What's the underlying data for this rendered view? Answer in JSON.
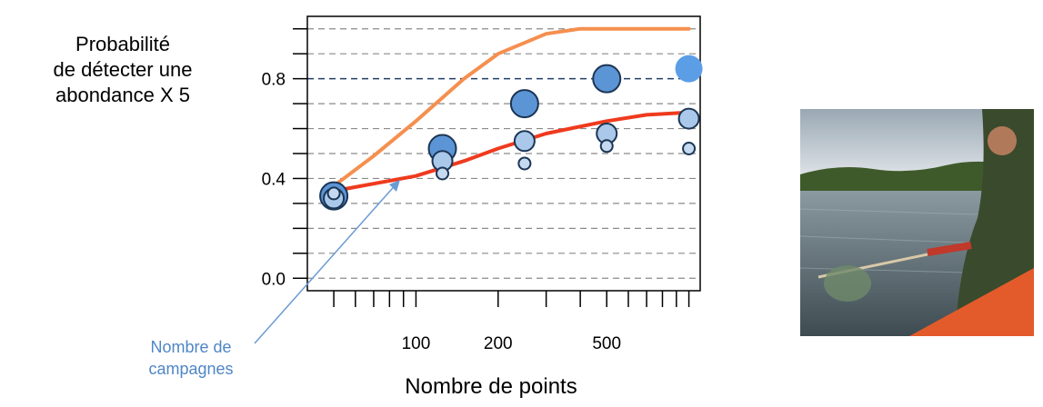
{
  "chart_data": {
    "type": "scatter",
    "title": "",
    "ylabel_lines": [
      "Probabilité",
      "de détecter une",
      "abondance X 5"
    ],
    "xlabel": "Nombre de points",
    "x_scale": "log",
    "xlim": [
      40,
      1100
    ],
    "ylim": [
      -0.05,
      1.05
    ],
    "x_ticks": [
      100,
      200,
      500
    ],
    "y_ticks": [
      0.0,
      0.4,
      0.8
    ],
    "y_tick_labels": [
      "0.0",
      "0.4",
      "0.8"
    ],
    "grid": "horizontal dashed every 0.1",
    "reference_line": {
      "y": 0.8,
      "color": "#1f3d66"
    },
    "annotation": {
      "lines": [
        "Nombre de",
        "campagnes"
      ],
      "color": "#4f86c6"
    },
    "bubbles": [
      {
        "x": 50,
        "y": 0.33,
        "size": 3
      },
      {
        "x": 50,
        "y": 0.32,
        "size": 2
      },
      {
        "x": 50,
        "y": 0.34,
        "size": 1
      },
      {
        "x": 125,
        "y": 0.52,
        "size": 3
      },
      {
        "x": 125,
        "y": 0.47,
        "size": 2
      },
      {
        "x": 125,
        "y": 0.42,
        "size": 1
      },
      {
        "x": 250,
        "y": 0.7,
        "size": 3
      },
      {
        "x": 250,
        "y": 0.55,
        "size": 2
      },
      {
        "x": 250,
        "y": 0.46,
        "size": 1
      },
      {
        "x": 500,
        "y": 0.8,
        "size": 3
      },
      {
        "x": 500,
        "y": 0.58,
        "size": 2
      },
      {
        "x": 500,
        "y": 0.53,
        "size": 1
      },
      {
        "x": 1000,
        "y": 0.84,
        "size": 3
      },
      {
        "x": 1000,
        "y": 0.64,
        "size": 2
      },
      {
        "x": 1000,
        "y": 0.52,
        "size": 1
      }
    ],
    "series": [
      {
        "color": "#f58f4f",
        "x": [
          50,
          70,
          100,
          150,
          200,
          300,
          400,
          600,
          1000
        ],
        "y": [
          0.37,
          0.49,
          0.63,
          0.8,
          0.9,
          0.98,
          1.0,
          1.0,
          1.0
        ]
      },
      {
        "color": "#ef3a1e",
        "x": [
          50,
          100,
          150,
          200,
          300,
          500,
          700,
          1000
        ],
        "y": [
          0.35,
          0.41,
          0.47,
          0.52,
          0.58,
          0.63,
          0.655,
          0.665
        ]
      }
    ]
  },
  "photo": {
    "description_icon": "person-fishing-with-net-icon"
  }
}
